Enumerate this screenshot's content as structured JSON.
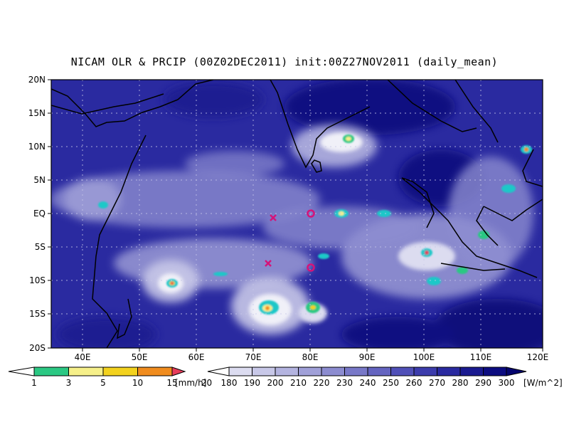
{
  "title": "NICAM OLR & PRCIP (00Z02DEC2011) init:00Z27NOV2011 (daily_mean)",
  "map": {
    "lat_labels": [
      "20N",
      "15N",
      "10N",
      "5N",
      "EQ",
      "5S",
      "10S",
      "15S",
      "20S"
    ],
    "lon_labels": [
      "40E",
      "50E",
      "60E",
      "70E",
      "80E",
      "90E",
      "100E",
      "110E",
      "120E"
    ],
    "lon_range": [
      35,
      120
    ],
    "lat_range": [
      -20,
      20
    ],
    "grid": "dotted",
    "markers": [
      {
        "type": "x",
        "lon": 73,
        "lat": -0.8,
        "color": "#d4147a"
      },
      {
        "type": "x",
        "lon": 72.5,
        "lat": -7.5,
        "color": "#d4147a"
      },
      {
        "type": "o",
        "lon": 80,
        "lat": 0,
        "color": "#d4147a"
      },
      {
        "type": "o",
        "lon": 80,
        "lat": -8,
        "color": "#d4147a"
      }
    ]
  },
  "precip_colorbar": {
    "unit": "[mm/h]",
    "ticks": [
      "1",
      "3",
      "5",
      "10",
      "15",
      "20"
    ],
    "colors": [
      "#1ec8c8",
      "#2bc883",
      "#f6f08a",
      "#f3d21e",
      "#f08c1e",
      "#e63c5a"
    ]
  },
  "olr_colorbar": {
    "unit": "[W/m^2]",
    "ticks": [
      "180",
      "190",
      "200",
      "210",
      "220",
      "230",
      "240",
      "250",
      "260",
      "270",
      "280",
      "290",
      "300"
    ],
    "colors": [
      "#f0f0f8",
      "#dcdcf0",
      "#c8c8e8",
      "#b4b4e0",
      "#a0a0d8",
      "#8c8cd0",
      "#7878c8",
      "#6464c0",
      "#5050b8",
      "#3c3cac",
      "#2a2aa0",
      "#1a1a90",
      "#0c0c80",
      "#05056e"
    ]
  }
}
